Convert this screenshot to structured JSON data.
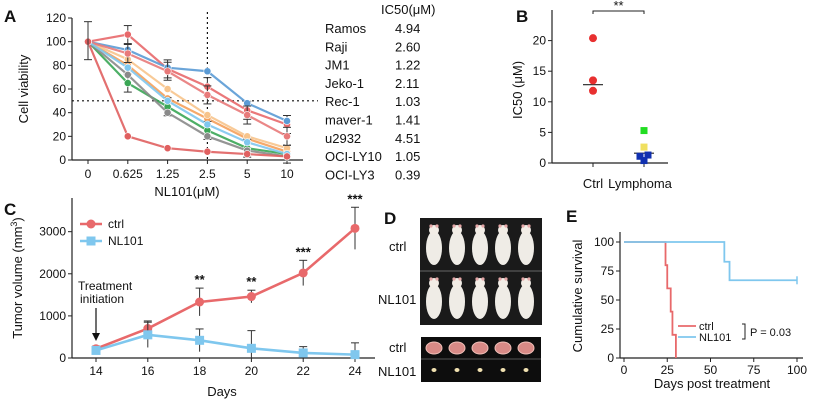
{
  "panels": {
    "a": "A",
    "b": "B",
    "c": "C",
    "d": "D",
    "e": "E"
  },
  "colors": {
    "red": "#e8696b",
    "blue": "#5b9bd5",
    "lightblue": "#7fc7ee",
    "orange": "#f5a05a",
    "peach": "#f7c48c",
    "green": "#3aa655",
    "gray": "#8a8a8a",
    "yellow": "#f0e060",
    "darkblue": "#1030b0",
    "brightgreen": "#22dd22"
  },
  "chart_data": [
    {
      "id": "A",
      "type": "line",
      "xlabel": "NL101(μM)",
      "ylabel": "Cell viability",
      "categories": [
        "0",
        "0.625",
        "1.25",
        "2.5",
        "5",
        "10"
      ],
      "ylim": [
        0,
        120
      ],
      "yticks": [
        0,
        20,
        40,
        60,
        80,
        100,
        120
      ],
      "reference_line_y": 50,
      "reference_line_x": "2.5",
      "series": [
        {
          "name": "Ramos",
          "color": "#e8696b",
          "values": [
            100,
            106,
            77,
            62,
            42,
            30
          ]
        },
        {
          "name": "Raji",
          "color": "#5b9bd5",
          "values": [
            100,
            93,
            78,
            75,
            48,
            33
          ]
        },
        {
          "name": "JM1",
          "color": "#f5a05a",
          "values": [
            100,
            80,
            52,
            35,
            18,
            7
          ]
        },
        {
          "name": "Jeko-1",
          "color": "#3aa655",
          "values": [
            100,
            65,
            45,
            25,
            10,
            5
          ]
        },
        {
          "name": "Rec-1",
          "color": "#8a8a8a",
          "values": [
            100,
            72,
            40,
            20,
            8,
            3
          ]
        },
        {
          "name": "maver-1",
          "color": "#f7c48c",
          "values": [
            100,
            85,
            60,
            38,
            20,
            10
          ]
        },
        {
          "name": "u2932",
          "color": "#e87a7a",
          "values": [
            100,
            90,
            75,
            55,
            38,
            20
          ]
        },
        {
          "name": "OCI-LY10",
          "color": "#7fc7ee",
          "values": [
            100,
            78,
            50,
            30,
            15,
            5
          ]
        },
        {
          "name": "OCI-LY3",
          "color": "#e06060",
          "values": [
            100,
            20,
            10,
            7,
            5,
            3
          ]
        }
      ],
      "ic50_header": "IC50(μM)",
      "ic50_table": [
        {
          "cell": "Ramos",
          "value": "4.94"
        },
        {
          "cell": "Raji",
          "value": "2.60"
        },
        {
          "cell": "JM1",
          "value": "1.22"
        },
        {
          "cell": "Jeko-1",
          "value": "2.11"
        },
        {
          "cell": "Rec-1",
          "value": "1.03"
        },
        {
          "cell": "maver-1",
          "value": "1.41"
        },
        {
          "cell": "u2932",
          "value": "4.51"
        },
        {
          "cell": "OCI-LY10",
          "value": "1.05"
        },
        {
          "cell": "OCI-LY3",
          "value": "0.39"
        }
      ]
    },
    {
      "id": "B",
      "type": "scatter",
      "ylabel": "IC50 (μM)",
      "categories": [
        "Ctrl",
        "Lymphoma"
      ],
      "ylim": [
        0,
        25
      ],
      "yticks": [
        0,
        5,
        10,
        15,
        20
      ],
      "significance": "**",
      "groups": [
        {
          "name": "Ctrl",
          "points": [
            {
              "y": 20.4,
              "color": "#e83030"
            },
            {
              "y": 13.5,
              "color": "#e83030"
            },
            {
              "y": 11.8,
              "color": "#e83030"
            }
          ],
          "median": 12.8
        },
        {
          "name": "Lymphoma",
          "points": [
            {
              "y": 5.3,
              "color": "#22dd22"
            },
            {
              "y": 2.6,
              "color": "#f0e060"
            },
            {
              "y": 1.3,
              "color": "#1030b0"
            },
            {
              "y": 1.1,
              "color": "#1030b0"
            },
            {
              "y": 0.4,
              "color": "#1030b0"
            }
          ],
          "median": 1.6
        }
      ]
    },
    {
      "id": "C",
      "type": "line",
      "xlabel": "Days",
      "ylabel": "Tumor volume (mm",
      "ylabel_sup": "3",
      "ylabel_end": ")",
      "x": [
        14,
        16,
        18,
        20,
        22,
        24
      ],
      "ylim": [
        0,
        3800
      ],
      "yticks": [
        0,
        1000,
        2000,
        3000
      ],
      "annotation": [
        "Treatment",
        "initiation"
      ],
      "series": [
        {
          "name": "ctrl",
          "color": "#e8696b",
          "values": [
            220,
            700,
            1330,
            1460,
            2020,
            3080
          ],
          "errors": [
            60,
            180,
            330,
            150,
            300,
            500
          ],
          "significance": [
            "",
            "",
            "**",
            "**",
            "***",
            "***"
          ]
        },
        {
          "name": "NL101",
          "color": "#7fc7ee",
          "values": [
            180,
            550,
            420,
            230,
            120,
            80
          ],
          "errors": [
            60,
            300,
            270,
            420,
            150,
            280
          ]
        }
      ]
    },
    {
      "id": "E",
      "type": "line",
      "xlabel": "Days post treatment",
      "ylabel": "Cumulative survival",
      "xlim": [
        0,
        100
      ],
      "xticks": [
        0,
        25,
        50,
        75,
        100
      ],
      "ylim": [
        0,
        100
      ],
      "yticks": [
        0,
        25,
        50,
        75,
        100
      ],
      "legend_stat": "P = 0.03",
      "series": [
        {
          "name": "ctrl",
          "color": "#e8696b",
          "steps": [
            [
              0,
              100
            ],
            [
              24,
              100
            ],
            [
              24,
              80
            ],
            [
              25,
              80
            ],
            [
              25,
              60
            ],
            [
              27,
              60
            ],
            [
              27,
              40
            ],
            [
              28,
              40
            ],
            [
              28,
              20
            ],
            [
              30,
              20
            ],
            [
              30,
              0
            ]
          ]
        },
        {
          "name": "NL101",
          "color": "#7fc7ee",
          "steps": [
            [
              0,
              100
            ],
            [
              58,
              100
            ],
            [
              58,
              83
            ],
            [
              61,
              83
            ],
            [
              61,
              67
            ],
            [
              100,
              67
            ]
          ]
        }
      ]
    }
  ],
  "panel_d": {
    "rows": [
      "ctrl",
      "NL101",
      "ctrl",
      "NL101"
    ]
  }
}
